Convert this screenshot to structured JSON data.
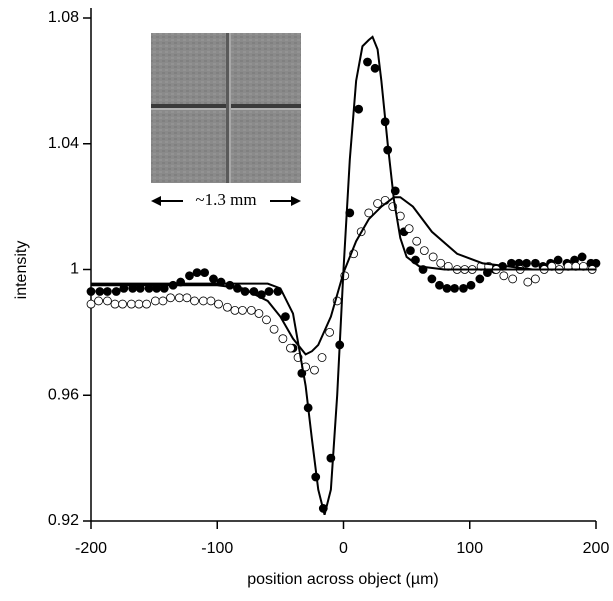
{
  "chart_data": {
    "type": "scatter",
    "xlabel": "position across object (µm)",
    "ylabel": "intensity",
    "inset_label": "~1.3 mm",
    "xlim": [
      -200,
      200
    ],
    "xticks": [
      -200,
      -100,
      0,
      100,
      200
    ],
    "ylim": [
      0.92,
      1.08
    ],
    "yticks": [
      0.92,
      0.96,
      1,
      1.04,
      1.08
    ],
    "series": [
      {
        "marker": "filled",
        "color": "#000000",
        "x": [
          -200,
          -193,
          -187,
          -180,
          -174,
          -167,
          -161,
          -154,
          -148,
          -142,
          -135,
          -129,
          -122,
          -116,
          -110,
          -103,
          -97,
          -90,
          -84,
          -78,
          -71,
          -65,
          -59,
          -52,
          -46,
          -40,
          -33,
          -28,
          -22,
          -16,
          -10,
          -3,
          5,
          12,
          19,
          25,
          33,
          35,
          41,
          48,
          53,
          57,
          63,
          70,
          76,
          82,
          88,
          95,
          101,
          108,
          114,
          120,
          126,
          133,
          139,
          145,
          152,
          158,
          164,
          170,
          177,
          183,
          189,
          196,
          200
        ],
        "values": [
          0.993,
          0.993,
          0.993,
          0.993,
          0.994,
          0.994,
          0.994,
          0.994,
          0.994,
          0.994,
          0.995,
          0.996,
          0.998,
          0.999,
          0.999,
          0.997,
          0.996,
          0.995,
          0.994,
          0.993,
          0.993,
          0.992,
          0.993,
          0.993,
          0.985,
          0.975,
          0.967,
          0.956,
          0.934,
          0.924,
          0.94,
          0.976,
          1.018,
          1.051,
          1.066,
          1.064,
          1.047,
          1.038,
          1.025,
          1.012,
          1.006,
          1.003,
          1.0,
          0.997,
          0.995,
          0.994,
          0.994,
          0.994,
          0.995,
          0.997,
          0.999,
          1.0,
          1.001,
          1.002,
          1.002,
          1.002,
          1.002,
          1.001,
          1.002,
          1.003,
          1.002,
          1.003,
          1.004,
          1.002,
          1.002
        ]
      },
      {
        "marker": "open",
        "color": "#000000",
        "x": [
          -200,
          -194,
          -187,
          -181,
          -175,
          -168,
          -162,
          -156,
          -149,
          -143,
          -137,
          -130,
          -124,
          -118,
          -111,
          -105,
          -99,
          -92,
          -86,
          -80,
          -73,
          -67,
          -61,
          -55,
          -48,
          -42,
          -36,
          -30,
          -23,
          -17,
          -11,
          -5,
          1,
          8,
          14,
          20,
          27,
          33,
          39,
          45,
          52,
          58,
          64,
          71,
          77,
          83,
          90,
          96,
          102,
          109,
          115,
          121,
          127,
          134,
          140,
          146,
          152,
          159,
          165,
          171,
          178,
          184,
          190,
          197
        ],
        "values": [
          0.989,
          0.99,
          0.99,
          0.989,
          0.989,
          0.989,
          0.989,
          0.989,
          0.99,
          0.99,
          0.991,
          0.991,
          0.991,
          0.99,
          0.99,
          0.99,
          0.989,
          0.988,
          0.987,
          0.987,
          0.987,
          0.986,
          0.984,
          0.981,
          0.978,
          0.975,
          0.972,
          0.969,
          0.968,
          0.972,
          0.98,
          0.99,
          0.998,
          1.005,
          1.012,
          1.018,
          1.021,
          1.022,
          1.02,
          1.017,
          1.013,
          1.009,
          1.006,
          1.004,
          1.002,
          1.001,
          1.0,
          1.0,
          1.0,
          1.001,
          1.001,
          1.0,
          0.998,
          0.997,
          1.0,
          0.996,
          0.997,
          1.0,
          1.001,
          1.0,
          1.001,
          1.001,
          1.001,
          1.0
        ]
      },
      {
        "marker": "line",
        "color": "#000000",
        "x": [
          -200,
          -60,
          -50,
          -40,
          -30,
          -25,
          -20,
          -15,
          -10,
          -5,
          0,
          5,
          10,
          15,
          20,
          23,
          27,
          30,
          35,
          40,
          45,
          50,
          60,
          80,
          200
        ],
        "values": [
          0.9955,
          0.9955,
          0.994,
          0.986,
          0.963,
          0.946,
          0.93,
          0.922,
          0.93,
          0.96,
          1.0,
          1.035,
          1.06,
          1.071,
          1.073,
          1.074,
          1.07,
          1.06,
          1.04,
          1.022,
          1.01,
          1.004,
          1.001,
          1.0,
          1.0
        ]
      },
      {
        "marker": "line",
        "color": "#000000",
        "x": [
          -200,
          -100,
          -80,
          -60,
          -50,
          -40,
          -30,
          -25,
          -20,
          -10,
          0,
          10,
          20,
          30,
          40,
          45,
          55,
          70,
          90,
          110,
          150,
          200
        ],
        "values": [
          0.995,
          0.995,
          0.994,
          0.99,
          0.985,
          0.978,
          0.973,
          0.974,
          0.976,
          0.985,
          0.999,
          1.009,
          1.016,
          1.02,
          1.023,
          1.023,
          1.02,
          1.012,
          1.005,
          1.002,
          1.0,
          1.0
        ]
      }
    ]
  }
}
